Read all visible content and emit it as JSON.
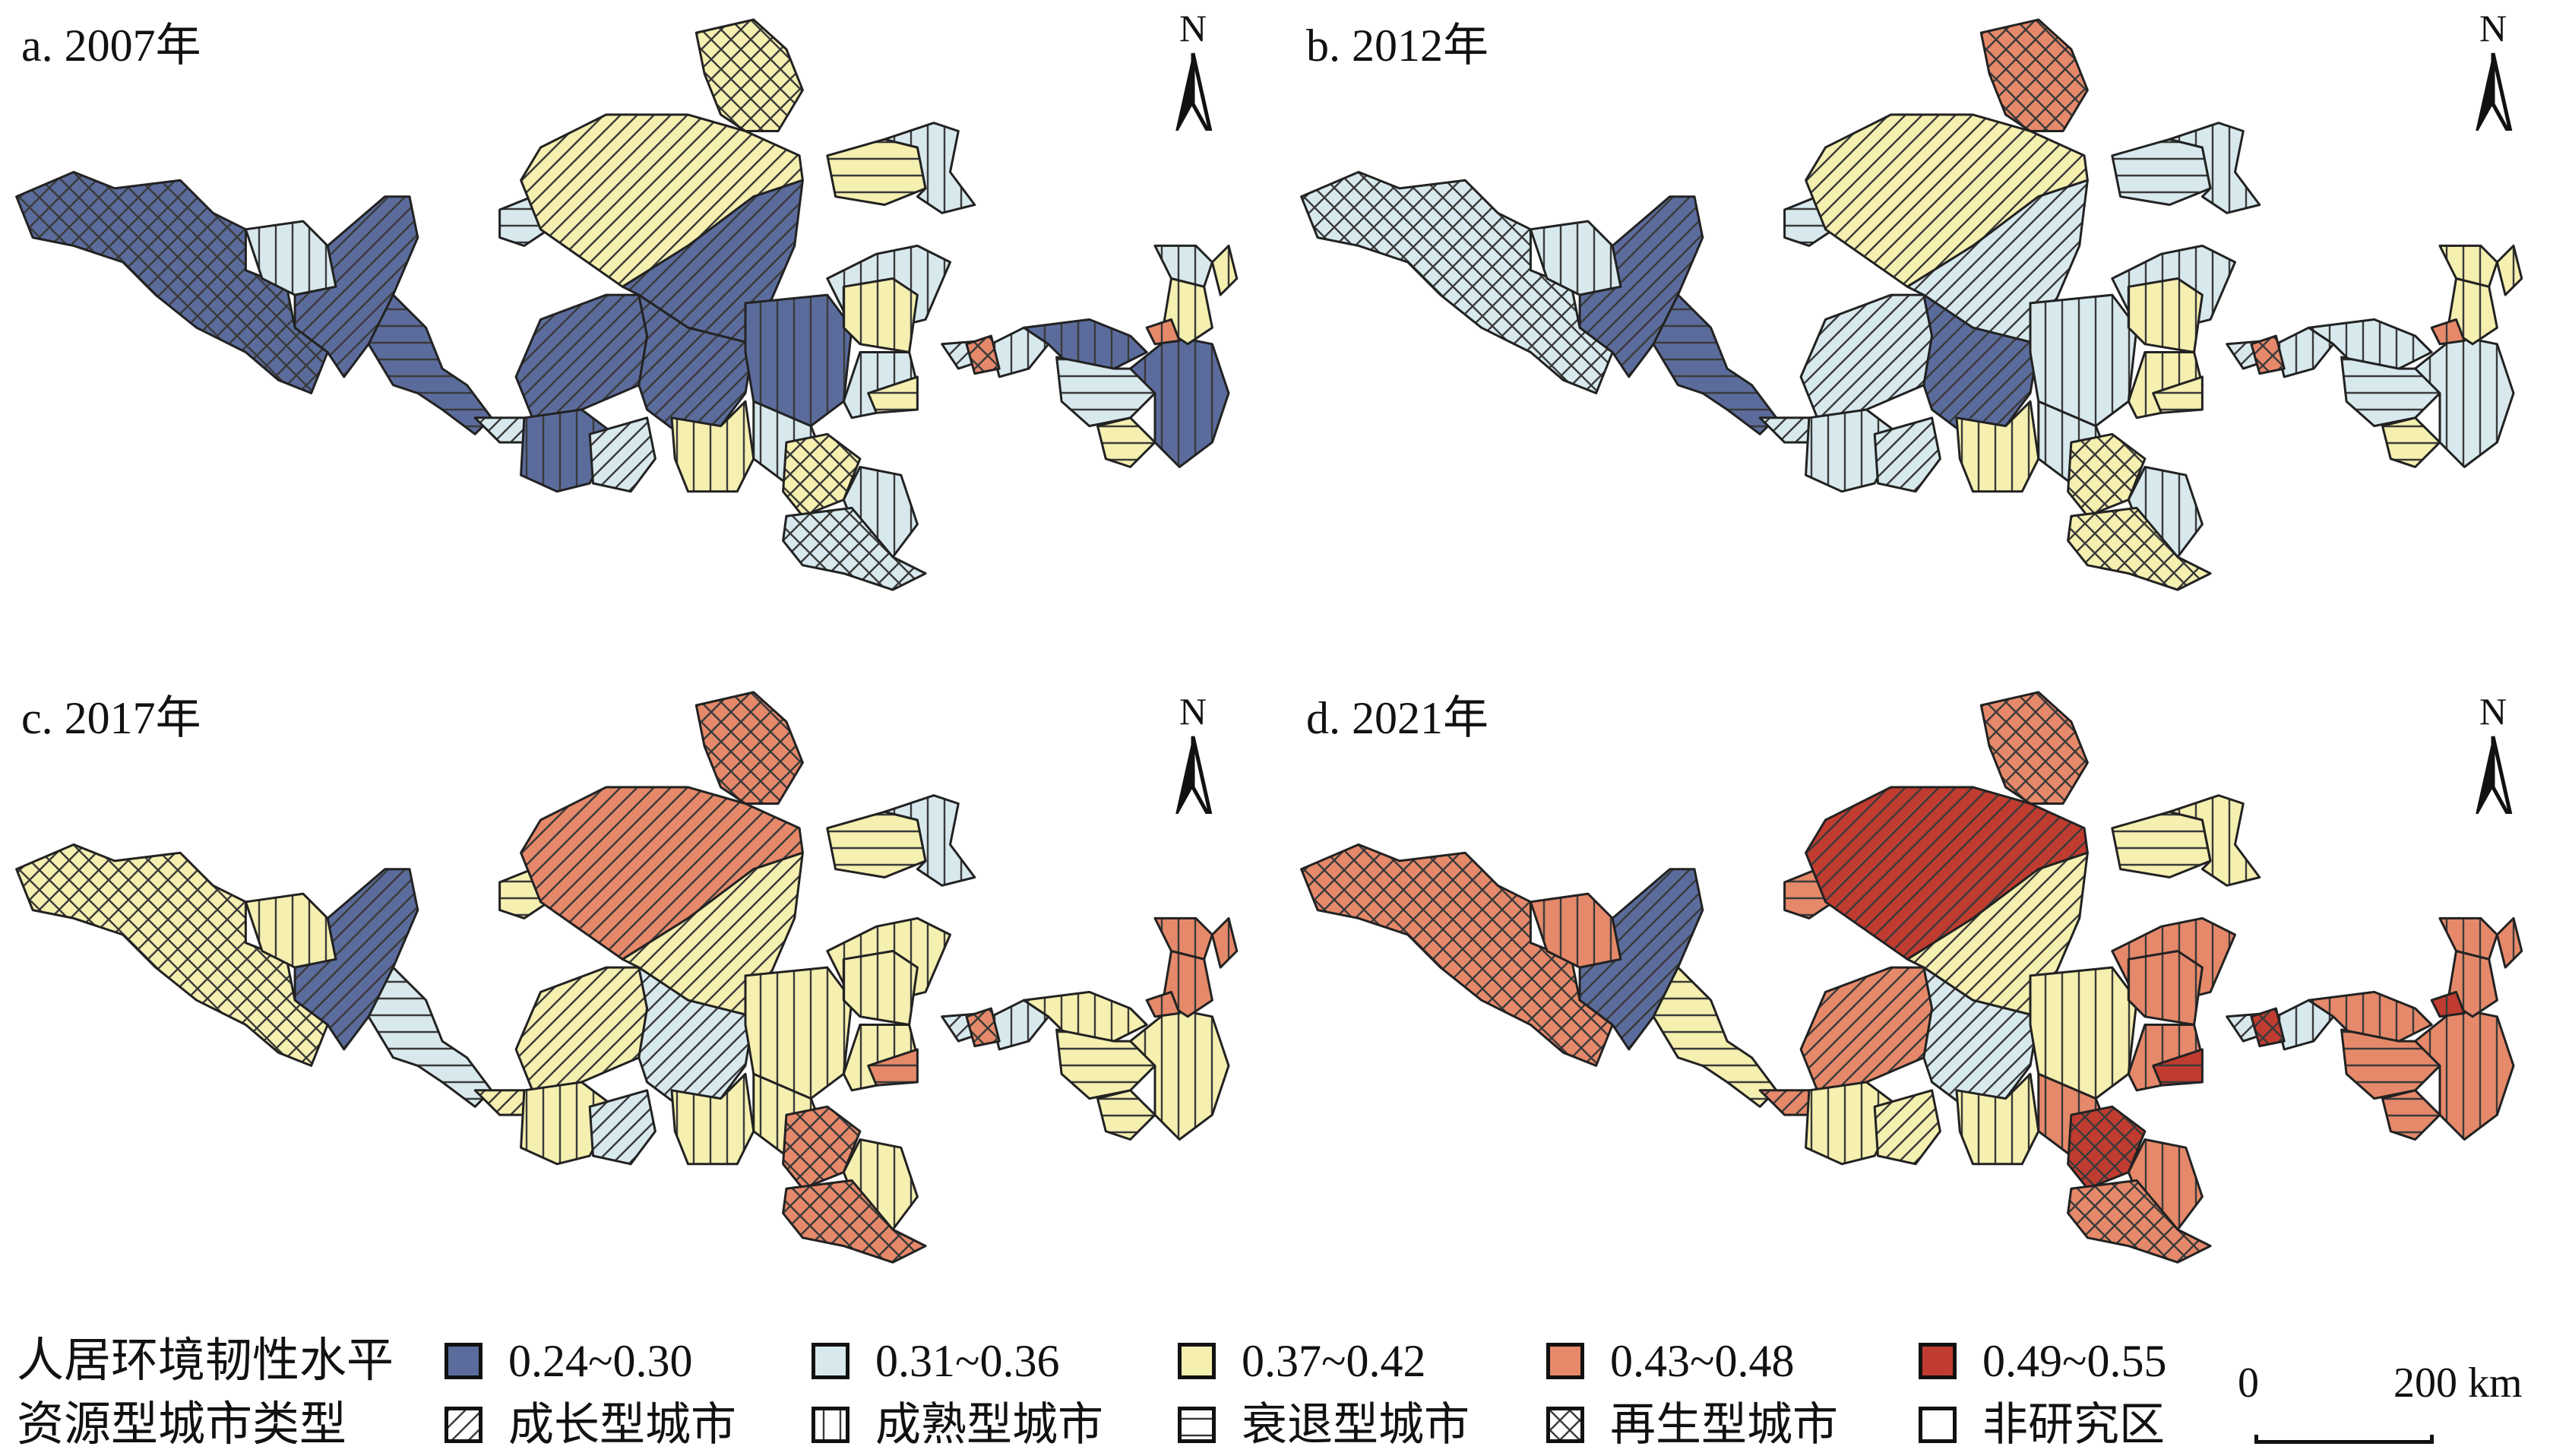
{
  "panels": [
    {
      "label": "a. 2007年",
      "year": 2007
    },
    {
      "label": "b. 2012年",
      "year": 2012
    },
    {
      "label": "c. 2017年",
      "year": 2017
    },
    {
      "label": "d. 2021年",
      "year": 2021
    }
  ],
  "north_arrow": {
    "label": "N",
    "icon": "north-arrow-icon"
  },
  "legend": {
    "resilience": {
      "title": "人居环境韧性水平",
      "classes": [
        {
          "label": "0.24~0.30",
          "color": "#5b6c9c"
        },
        {
          "label": "0.31~0.36",
          "color": "#d8e9ee"
        },
        {
          "label": "0.37~0.42",
          "color": "#f5efb0"
        },
        {
          "label": "0.43~0.48",
          "color": "#e5896a"
        },
        {
          "label": "0.49~0.55",
          "color": "#c03c30"
        }
      ]
    },
    "city_type": {
      "title": "资源型城市类型",
      "types": [
        {
          "label": "成长型城市",
          "pattern": "diagonal"
        },
        {
          "label": "成熟型城市",
          "pattern": "vertical"
        },
        {
          "label": "衰退型城市",
          "pattern": "horizontal"
        },
        {
          "label": "再生型城市",
          "pattern": "crosshatch"
        },
        {
          "label": "非研究区",
          "pattern": "none"
        }
      ]
    }
  },
  "scale_bar": {
    "start": "0",
    "end": "200 km"
  },
  "regions": {
    "types": [
      "crosshatch",
      "vertical",
      "diagonal",
      "horizontal",
      "diagonal",
      "horizontal",
      "diagonal",
      "crosshatch",
      "diagonal",
      "diagonal",
      "diagonal",
      "vertical",
      "diagonal",
      "vertical",
      "vertical",
      "horizontal",
      "vertical",
      "vertical",
      "vertical",
      "vertical",
      "vertical",
      "horizontal",
      "crosshatch",
      "vertical",
      "crosshatch",
      "diagonal",
      "vertical",
      "vertical",
      "horizontal",
      "vertical",
      "vertical",
      "vertical",
      "vertical",
      "horizontal",
      "crosshatch",
      "vertical"
    ],
    "class_by_panel": [
      [
        0,
        1,
        0,
        0,
        1,
        1,
        2,
        2,
        0,
        0,
        0,
        0,
        1,
        2,
        0,
        2,
        1,
        1,
        2,
        1,
        1,
        2,
        2,
        1,
        1,
        1,
        1,
        0,
        1,
        0,
        1,
        2,
        2,
        2,
        3,
        3
      ],
      [
        1,
        1,
        0,
        0,
        1,
        1,
        2,
        3,
        1,
        1,
        0,
        1,
        1,
        2,
        1,
        1,
        1,
        1,
        2,
        2,
        1,
        2,
        2,
        1,
        2,
        1,
        1,
        1,
        1,
        1,
        2,
        2,
        2,
        2,
        3,
        3
      ],
      [
        2,
        2,
        0,
        1,
        2,
        2,
        3,
        3,
        2,
        2,
        1,
        2,
        1,
        2,
        2,
        2,
        1,
        2,
        2,
        2,
        2,
        3,
        3,
        2,
        3,
        1,
        1,
        2,
        2,
        2,
        3,
        3,
        3,
        2,
        3,
        3
      ],
      [
        3,
        3,
        0,
        2,
        3,
        3,
        4,
        3,
        2,
        3,
        1,
        2,
        2,
        2,
        2,
        2,
        2,
        3,
        3,
        3,
        3,
        4,
        4,
        3,
        3,
        1,
        1,
        3,
        3,
        3,
        3,
        3,
        3,
        3,
        4,
        4
      ]
    ]
  }
}
